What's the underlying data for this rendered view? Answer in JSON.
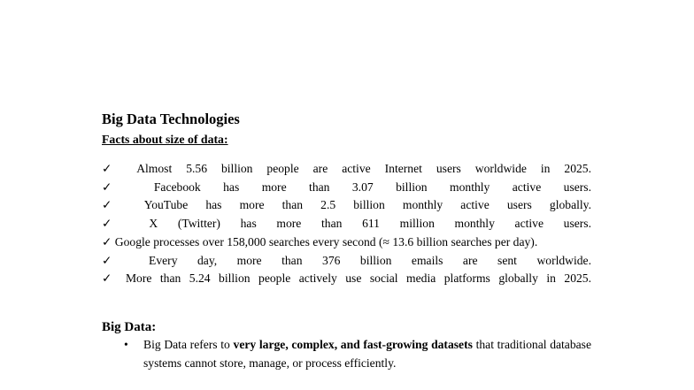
{
  "document": {
    "title": "Big Data Technologies",
    "subtitle": "Facts about size of data:",
    "check_marker": "✓",
    "facts": [
      {
        "text": "Almost 5.56 billion people are active Internet users worldwide in 2025."
      },
      {
        "text": "Facebook has more than 3.07 billion monthly active users."
      },
      {
        "text": "YouTube has more than 2.5 billion monthly active users globally."
      },
      {
        "text": "X (Twitter) has more than 611 million monthly active users."
      },
      {
        "text": "Google processes over 158,000 searches every second (≈ 13.6 billion searches per day)."
      },
      {
        "text": "Every day, more than 376 billion emails are sent worldwide."
      },
      {
        "text": "More than 5.24 billion people actively use social media platforms globally in 2025."
      }
    ],
    "section2": {
      "heading": "Big Data:",
      "bullet_char": "•",
      "bullet": {
        "prefix": "Big Data refers to ",
        "bold": "very large, complex, and fast-growing datasets",
        "suffix": " that traditional database systems cannot store, manage, or process efficiently."
      }
    },
    "text_color": "#000000",
    "page_background": "#ffffff"
  }
}
